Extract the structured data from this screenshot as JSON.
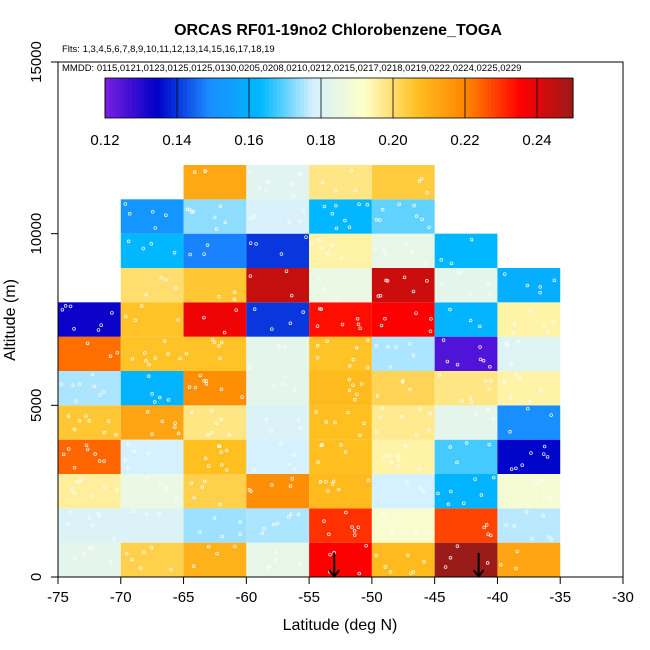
{
  "chart_data": {
    "type": "heatmap",
    "title": "ORCAS RF01-19no2 Chlorobenzene_TOGA",
    "flights_line": "Flts: 1,3,4,5,6,7,8,9,10,11,12,13,14,15,16,17,18,19",
    "dates_line": "MMDD: 0115,0121,0123,0125,0125,0130,0205,0208,0210,0212,0215,0217,0218,0219,0222,0224,0225,0229",
    "xlabel": "Latitude (deg N)",
    "ylabel": "Altitude (m)",
    "xlim": [
      -75,
      -30
    ],
    "ylim": [
      0,
      15000
    ],
    "x_ticks": [
      -75,
      -70,
      -65,
      -60,
      -55,
      -50,
      -45,
      -40,
      -35,
      -30
    ],
    "x_tick_labels": [
      "-75",
      "-70",
      "-65",
      "-60",
      "-55",
      "-50",
      "-45",
      "-40",
      "-35",
      "-30"
    ],
    "y_ticks": [
      0,
      5000,
      10000,
      15000
    ],
    "y_tick_labels": [
      "0",
      "5000",
      "10000",
      "15000"
    ],
    "colorbar": {
      "range": [
        0.12,
        0.25
      ],
      "ticks": [
        0.12,
        0.14,
        0.16,
        0.18,
        0.2,
        0.22,
        0.24
      ],
      "tick_labels": [
        "0.12",
        "0.14",
        "0.16",
        "0.18",
        "0.20",
        "0.22",
        "0.24"
      ],
      "stops": [
        "#7b1fe0",
        "#0000c8",
        "#1a8cff",
        "#00b8ff",
        "#d4f0ff",
        "#ffffc8",
        "#ffc020",
        "#ff8000",
        "#ff0000",
        "#9b1a1a"
      ]
    },
    "lat_bin_edges": [
      -75,
      -70,
      -65,
      -60,
      -55,
      -50,
      -45,
      -40,
      -35
    ],
    "alt_bin_size": 1000,
    "columns": [
      {
        "lat": [
          -75,
          -70
        ],
        "cells": [
          0.183,
          0.18,
          0.196,
          0.224,
          0.205,
          0.175,
          0.223,
          0.133
        ]
      },
      {
        "lat": [
          -70,
          -65
        ],
        "cells": [
          0.203,
          0.18,
          0.185,
          0.178,
          0.213,
          0.162,
          0.206,
          0.206,
          0.2,
          0.163,
          0.152
        ]
      },
      {
        "lat": [
          -65,
          -60
        ],
        "cells": [
          0.21,
          0.174,
          0.203,
          0.207,
          0.198,
          0.218,
          0.206,
          0.238,
          0.205,
          0.148,
          0.173,
          0.212
        ]
      },
      {
        "lat": [
          -60,
          -55
        ],
        "cells": [
          0.184,
          0.175,
          0.218,
          0.178,
          0.18,
          0.183,
          0.183,
          0.14,
          0.244,
          0.14,
          0.179,
          0.182
        ]
      },
      {
        "lat": [
          -55,
          -50
        ],
        "cells": [
          0.236,
          0.23,
          0.208,
          0.207,
          0.207,
          0.208,
          0.206,
          0.234,
          0.185,
          0.195,
          0.163,
          0.198
        ]
      },
      {
        "lat": [
          -50,
          -45
        ],
        "cells": [
          0.208,
          0.19,
          0.178,
          0.195,
          0.197,
          0.202,
          0.175,
          0.236,
          0.243,
          0.184,
          0.17,
          0.204
        ]
      },
      {
        "lat": [
          -45,
          -40
        ],
        "cells": [
          0.25,
          0.228,
          0.162,
          0.168,
          0.183,
          0.198,
          0.125,
          0.162,
          0.183,
          0.163
        ]
      },
      {
        "lat": [
          -40,
          -35
        ],
        "cells": [
          0.213,
          0.176,
          0.189,
          0.135,
          0.15,
          0.195,
          0.181,
          0.195,
          0.16
        ]
      }
    ],
    "markers": [
      {
        "type": "down-arrow",
        "lat": -53
      },
      {
        "type": "down-arrow",
        "lat": -41.5
      }
    ]
  }
}
